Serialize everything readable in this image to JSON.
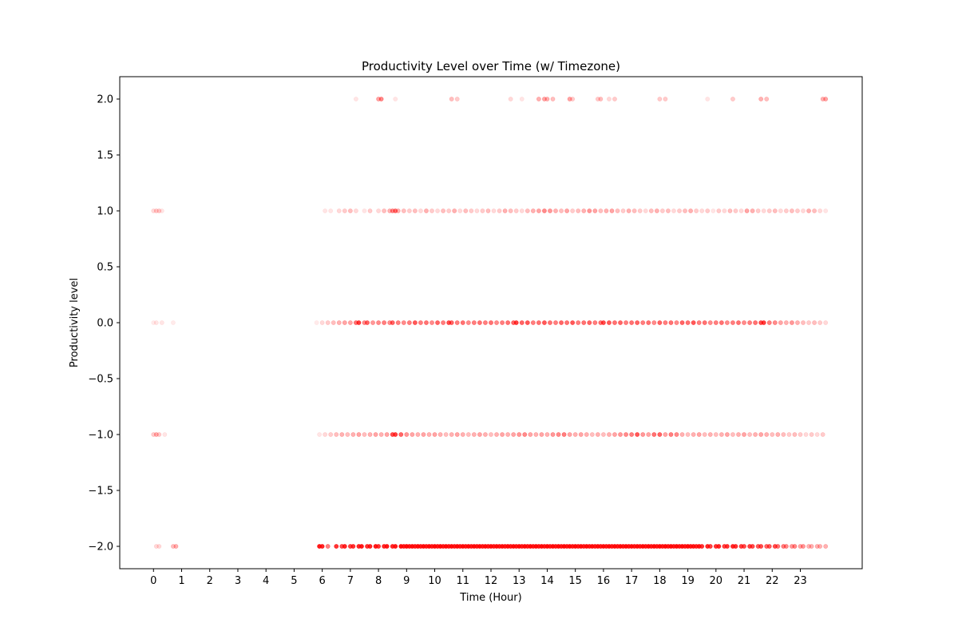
{
  "chart_data": {
    "type": "scatter",
    "title": "Productivity Level over Time (w/ Timezone)",
    "xlabel": "Time (Hour)",
    "ylabel": "Productivity level",
    "xlim": [
      -1.2,
      25.2
    ],
    "ylim": [
      -2.2,
      2.2
    ],
    "xticks": [
      0,
      1,
      2,
      3,
      4,
      5,
      6,
      7,
      8,
      9,
      10,
      11,
      12,
      13,
      14,
      15,
      16,
      17,
      18,
      19,
      20,
      21,
      22,
      23
    ],
    "xtick_labels": [
      "0",
      "1",
      "2",
      "3",
      "4",
      "5",
      "6",
      "7",
      "8",
      "9",
      "10",
      "11",
      "12",
      "13",
      "14",
      "15",
      "16",
      "17",
      "18",
      "19",
      "20",
      "21",
      "22",
      "23"
    ],
    "yticks": [
      2.0,
      1.5,
      1.0,
      0.5,
      0.0,
      -0.5,
      -1.0,
      -1.5,
      -2.0
    ],
    "ytick_labels": [
      "2.0",
      "1.5",
      "1.0",
      "0.5",
      "0.0",
      "−0.5",
      "−1.0",
      "−1.5",
      "−2.0"
    ],
    "grid": false,
    "marker_color": "#ff0000",
    "levels": [
      -2,
      -1,
      0,
      1,
      2
    ],
    "series": [
      {
        "y": 2,
        "x": [
          7.2,
          8.0,
          8.1,
          8.6,
          10.6,
          10.8,
          12.7,
          13.1,
          13.7,
          13.9,
          14.0,
          14.2,
          14.8,
          14.9,
          15.8,
          15.9,
          16.2,
          16.4,
          18.0,
          18.2,
          19.7,
          20.6,
          21.6,
          21.8,
          23.8,
          23.9
        ],
        "opacity": [
          0.1,
          0.35,
          0.45,
          0.1,
          0.25,
          0.2,
          0.15,
          0.1,
          0.3,
          0.35,
          0.3,
          0.25,
          0.35,
          0.2,
          0.2,
          0.25,
          0.15,
          0.2,
          0.2,
          0.2,
          0.1,
          0.2,
          0.3,
          0.25,
          0.3,
          0.35
        ]
      },
      {
        "y": 1,
        "x": [
          0.0,
          0.1,
          0.2,
          0.3,
          6.1,
          6.3,
          6.6,
          6.8,
          7.0,
          7.2,
          7.5,
          7.7,
          8.0,
          8.2,
          8.4,
          8.5,
          8.6,
          8.7,
          8.9,
          9.1,
          9.3,
          9.5,
          9.7,
          9.9,
          10.1,
          10.3,
          10.5,
          10.7,
          10.9,
          11.1,
          11.3,
          11.5,
          11.7,
          11.9,
          12.1,
          12.3,
          12.5,
          12.7,
          12.9,
          13.1,
          13.3,
          13.5,
          13.7,
          13.9,
          14.1,
          14.3,
          14.5,
          14.7,
          14.9,
          15.1,
          15.3,
          15.5,
          15.7,
          15.9,
          16.1,
          16.3,
          16.5,
          16.7,
          16.9,
          17.1,
          17.3,
          17.5,
          17.7,
          17.9,
          18.1,
          18.3,
          18.5,
          18.7,
          18.9,
          19.1,
          19.3,
          19.5,
          19.7,
          19.9,
          20.1,
          20.3,
          20.5,
          20.7,
          20.9,
          21.1,
          21.3,
          21.5,
          21.7,
          21.9,
          22.1,
          22.3,
          22.5,
          22.7,
          22.9,
          23.1,
          23.3,
          23.5,
          23.7,
          23.9
        ],
        "opacity": [
          0.15,
          0.2,
          0.2,
          0.1,
          0.1,
          0.1,
          0.15,
          0.2,
          0.25,
          0.15,
          0.1,
          0.2,
          0.15,
          0.25,
          0.3,
          0.45,
          0.55,
          0.3,
          0.25,
          0.2,
          0.25,
          0.15,
          0.3,
          0.2,
          0.15,
          0.25,
          0.2,
          0.3,
          0.15,
          0.25,
          0.2,
          0.15,
          0.2,
          0.25,
          0.15,
          0.2,
          0.3,
          0.25,
          0.2,
          0.15,
          0.25,
          0.3,
          0.35,
          0.45,
          0.4,
          0.3,
          0.25,
          0.35,
          0.2,
          0.25,
          0.3,
          0.4,
          0.35,
          0.25,
          0.3,
          0.35,
          0.25,
          0.2,
          0.3,
          0.25,
          0.2,
          0.15,
          0.25,
          0.3,
          0.2,
          0.25,
          0.15,
          0.2,
          0.25,
          0.3,
          0.2,
          0.15,
          0.2,
          0.1,
          0.2,
          0.15,
          0.25,
          0.2,
          0.15,
          0.35,
          0.3,
          0.2,
          0.15,
          0.2,
          0.25,
          0.15,
          0.2,
          0.25,
          0.2,
          0.15,
          0.3,
          0.25,
          0.15,
          0.1
        ]
      },
      {
        "y": 0,
        "x": [
          0.0,
          0.1,
          0.3,
          0.7,
          5.8,
          6.0,
          6.2,
          6.4,
          6.6,
          6.8,
          7.0,
          7.2,
          7.3,
          7.5,
          7.6,
          7.8,
          8.0,
          8.2,
          8.4,
          8.5,
          8.7,
          8.9,
          9.1,
          9.3,
          9.5,
          9.7,
          9.9,
          10.1,
          10.3,
          10.5,
          10.6,
          10.8,
          11.0,
          11.2,
          11.4,
          11.6,
          11.8,
          12.0,
          12.2,
          12.4,
          12.6,
          12.8,
          12.9,
          13.1,
          13.3,
          13.5,
          13.7,
          13.9,
          14.1,
          14.3,
          14.5,
          14.7,
          14.9,
          15.1,
          15.3,
          15.5,
          15.7,
          15.9,
          16.0,
          16.2,
          16.4,
          16.6,
          16.8,
          17.0,
          17.2,
          17.4,
          17.6,
          17.8,
          18.0,
          18.2,
          18.4,
          18.6,
          18.8,
          19.0,
          19.2,
          19.4,
          19.6,
          19.8,
          20.0,
          20.2,
          20.4,
          20.6,
          20.8,
          21.0,
          21.2,
          21.4,
          21.6,
          21.7,
          21.9,
          22.1,
          22.3,
          22.5,
          22.7,
          22.9,
          23.1,
          23.3,
          23.5,
          23.7,
          23.9
        ],
        "opacity": [
          0.08,
          0.1,
          0.1,
          0.08,
          0.08,
          0.15,
          0.2,
          0.25,
          0.3,
          0.35,
          0.35,
          0.55,
          0.75,
          0.45,
          0.6,
          0.4,
          0.45,
          0.5,
          0.45,
          0.6,
          0.5,
          0.45,
          0.5,
          0.65,
          0.5,
          0.55,
          0.45,
          0.6,
          0.5,
          0.7,
          0.6,
          0.5,
          0.55,
          0.45,
          0.5,
          0.55,
          0.5,
          0.55,
          0.45,
          0.5,
          0.55,
          0.6,
          0.75,
          0.6,
          0.65,
          0.5,
          0.55,
          0.65,
          0.55,
          0.5,
          0.6,
          0.55,
          0.65,
          0.5,
          0.55,
          0.6,
          0.5,
          0.55,
          0.7,
          0.65,
          0.55,
          0.6,
          0.5,
          0.55,
          0.6,
          0.5,
          0.55,
          0.45,
          0.6,
          0.5,
          0.55,
          0.45,
          0.6,
          0.55,
          0.65,
          0.5,
          0.55,
          0.45,
          0.5,
          0.55,
          0.45,
          0.5,
          0.55,
          0.45,
          0.5,
          0.55,
          0.7,
          0.75,
          0.5,
          0.45,
          0.35,
          0.3,
          0.4,
          0.3,
          0.25,
          0.2,
          0.25,
          0.2,
          0.15
        ]
      },
      {
        "y": -1,
        "x": [
          0.0,
          0.1,
          0.2,
          0.4,
          5.9,
          6.1,
          6.3,
          6.5,
          6.7,
          6.9,
          7.1,
          7.3,
          7.5,
          7.7,
          7.9,
          8.1,
          8.3,
          8.5,
          8.6,
          8.8,
          9.0,
          9.2,
          9.4,
          9.6,
          9.8,
          10.0,
          10.2,
          10.4,
          10.6,
          10.8,
          11.0,
          11.2,
          11.4,
          11.6,
          11.8,
          12.0,
          12.2,
          12.4,
          12.6,
          12.8,
          13.0,
          13.2,
          13.4,
          13.6,
          13.8,
          14.0,
          14.2,
          14.4,
          14.6,
          14.8,
          15.0,
          15.2,
          15.4,
          15.6,
          15.8,
          16.0,
          16.2,
          16.4,
          16.6,
          16.8,
          17.0,
          17.2,
          17.4,
          17.6,
          17.8,
          18.0,
          18.2,
          18.4,
          18.6,
          18.8,
          19.0,
          19.2,
          19.4,
          19.6,
          19.8,
          20.0,
          20.2,
          20.4,
          20.6,
          20.8,
          21.0,
          21.2,
          21.4,
          21.6,
          21.8,
          22.0,
          22.2,
          22.4,
          22.6,
          22.8,
          23.0,
          23.2,
          23.4,
          23.6,
          23.8
        ],
        "opacity": [
          0.2,
          0.3,
          0.2,
          0.1,
          0.1,
          0.15,
          0.2,
          0.25,
          0.3,
          0.25,
          0.3,
          0.35,
          0.25,
          0.3,
          0.35,
          0.3,
          0.35,
          0.7,
          0.75,
          0.6,
          0.4,
          0.35,
          0.3,
          0.35,
          0.3,
          0.35,
          0.3,
          0.25,
          0.3,
          0.35,
          0.3,
          0.25,
          0.3,
          0.35,
          0.3,
          0.25,
          0.3,
          0.35,
          0.3,
          0.35,
          0.4,
          0.45,
          0.35,
          0.3,
          0.35,
          0.3,
          0.4,
          0.45,
          0.5,
          0.35,
          0.3,
          0.35,
          0.3,
          0.25,
          0.3,
          0.25,
          0.3,
          0.35,
          0.4,
          0.45,
          0.5,
          0.65,
          0.4,
          0.35,
          0.55,
          0.6,
          0.35,
          0.5,
          0.45,
          0.3,
          0.25,
          0.3,
          0.35,
          0.25,
          0.3,
          0.25,
          0.3,
          0.35,
          0.25,
          0.3,
          0.35,
          0.25,
          0.3,
          0.35,
          0.3,
          0.25,
          0.3,
          0.25,
          0.2,
          0.25,
          0.2,
          0.15,
          0.2,
          0.15,
          0.2
        ]
      },
      {
        "y": -2,
        "x": [
          0.1,
          0.2,
          0.7,
          0.8,
          5.9,
          6.0,
          6.2,
          6.5,
          6.7,
          6.8,
          7.0,
          7.1,
          7.3,
          7.4,
          7.6,
          7.7,
          7.9,
          8.0,
          8.2,
          8.3,
          8.5,
          8.6,
          8.8,
          8.9,
          9.0,
          9.1,
          9.2,
          9.3,
          9.4,
          9.5,
          9.6,
          9.7,
          9.8,
          9.9,
          10.0,
          10.1,
          10.2,
          10.3,
          10.4,
          10.5,
          10.6,
          10.7,
          10.8,
          10.9,
          11.0,
          11.1,
          11.2,
          11.3,
          11.4,
          11.5,
          11.6,
          11.7,
          11.8,
          11.9,
          12.0,
          12.1,
          12.2,
          12.3,
          12.4,
          12.5,
          12.6,
          12.7,
          12.8,
          12.9,
          13.0,
          13.1,
          13.2,
          13.3,
          13.4,
          13.5,
          13.6,
          13.7,
          13.8,
          13.9,
          14.0,
          14.1,
          14.2,
          14.3,
          14.4,
          14.5,
          14.6,
          14.7,
          14.8,
          14.9,
          15.0,
          15.1,
          15.2,
          15.3,
          15.4,
          15.5,
          15.6,
          15.7,
          15.8,
          15.9,
          16.0,
          16.1,
          16.2,
          16.3,
          16.4,
          16.5,
          16.6,
          16.7,
          16.8,
          16.9,
          17.0,
          17.1,
          17.2,
          17.3,
          17.4,
          17.5,
          17.6,
          17.7,
          17.8,
          17.9,
          18.0,
          18.1,
          18.2,
          18.3,
          18.4,
          18.5,
          18.6,
          18.7,
          18.8,
          18.9,
          19.0,
          19.1,
          19.2,
          19.3,
          19.4,
          19.5,
          19.7,
          19.8,
          20.0,
          20.1,
          20.3,
          20.4,
          20.6,
          20.7,
          20.9,
          21.0,
          21.2,
          21.3,
          21.5,
          21.6,
          21.8,
          21.9,
          22.1,
          22.2,
          22.4,
          22.5,
          22.7,
          22.8,
          23.0,
          23.1,
          23.3,
          23.4,
          23.6,
          23.7,
          23.9
        ],
        "opacity": [
          0.15,
          0.15,
          0.25,
          0.3,
          0.9,
          0.85,
          0.5,
          0.8,
          0.7,
          0.85,
          0.75,
          0.8,
          0.85,
          0.9,
          0.8,
          0.85,
          0.9,
          0.8,
          0.85,
          0.9,
          0.85,
          0.9,
          0.95,
          0.9,
          0.95,
          0.9,
          0.95,
          0.9,
          0.95,
          0.9,
          0.95,
          0.9,
          0.95,
          0.9,
          0.95,
          0.9,
          0.95,
          0.9,
          0.95,
          0.9,
          0.95,
          0.9,
          0.95,
          0.9,
          0.95,
          0.9,
          0.95,
          0.9,
          0.95,
          0.9,
          0.95,
          0.9,
          0.95,
          0.9,
          0.95,
          0.9,
          0.95,
          0.9,
          0.95,
          0.9,
          0.95,
          0.9,
          0.95,
          0.9,
          0.95,
          0.9,
          0.95,
          0.9,
          0.95,
          0.9,
          0.95,
          0.9,
          0.95,
          0.9,
          0.95,
          0.9,
          0.95,
          0.9,
          0.95,
          0.9,
          0.95,
          0.9,
          0.95,
          0.9,
          0.95,
          0.9,
          0.95,
          0.9,
          0.95,
          0.9,
          0.95,
          0.9,
          0.95,
          0.9,
          0.95,
          0.9,
          0.95,
          0.9,
          0.95,
          0.9,
          0.95,
          0.9,
          0.95,
          0.9,
          0.95,
          0.9,
          0.95,
          0.9,
          0.95,
          0.9,
          0.95,
          0.9,
          0.95,
          0.9,
          0.95,
          0.9,
          0.95,
          0.9,
          0.95,
          0.9,
          0.95,
          0.9,
          0.95,
          0.9,
          0.95,
          0.9,
          0.9,
          0.85,
          0.9,
          0.8,
          0.85,
          0.75,
          0.8,
          0.85,
          0.75,
          0.8,
          0.85,
          0.8,
          0.75,
          0.7,
          0.75,
          0.7,
          0.65,
          0.7,
          0.6,
          0.65,
          0.7,
          0.55,
          0.5,
          0.45,
          0.4,
          0.45,
          0.35,
          0.4,
          0.3
        ]
      }
    ]
  }
}
